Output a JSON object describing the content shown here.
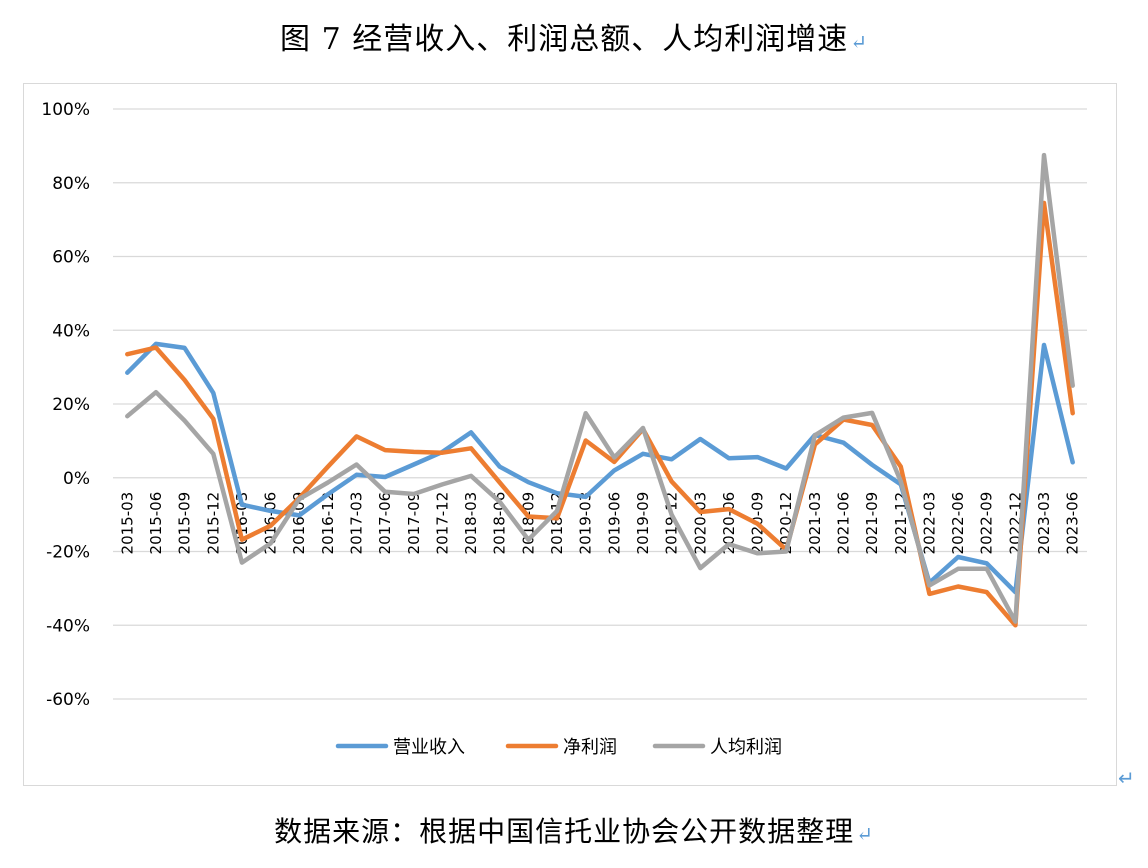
{
  "title": "图 7 经营收入、利润总额、人均利润增速",
  "source_note": "数据来源：根据中国信托业协会公开数据整理",
  "return_mark": "↵",
  "chart_data": {
    "type": "line",
    "title": "",
    "xlabel": "",
    "ylabel": "",
    "ylim": [
      -60,
      100
    ],
    "ystep": 20,
    "yformat": "percent",
    "grid": true,
    "legend_position": "bottom",
    "categories": [
      "2015-03",
      "2015-06",
      "2015-09",
      "2015-12",
      "2016-03",
      "2016-06",
      "2016-09",
      "2016-12",
      "2017-03",
      "2017-06",
      "2017-09",
      "2017-12",
      "2018-03",
      "2018-06",
      "2018-09",
      "2018-12",
      "2019-03",
      "2019-06",
      "2019-09",
      "2019-12",
      "2020-03",
      "2020-06",
      "2020-09",
      "2020-12",
      "2021-03",
      "2021-06",
      "2021-09",
      "2021-12",
      "2022-03",
      "2022-06",
      "2022-09",
      "2022-12",
      "2023-03",
      "2023-06"
    ],
    "series": [
      {
        "name": "营业收入",
        "color": "#5b9bd5",
        "values": [
          28.5,
          36.3,
          35.2,
          23,
          -7.3,
          -9,
          -10.2,
          -4.5,
          0.8,
          0.2,
          3.6,
          7,
          12.3,
          3,
          -1.2,
          -4.2,
          -5.2,
          2,
          6.5,
          5,
          10.5,
          5.3,
          5.6,
          2.5,
          11.6,
          9.5,
          3.5,
          -1.8,
          -28.5,
          -21.5,
          -23.2,
          -31,
          36,
          4.2
        ]
      },
      {
        "name": "净利润",
        "color": "#ed7d31",
        "values": [
          33.5,
          35.3,
          26.5,
          16,
          -16.8,
          -13,
          -5.5,
          3,
          11.2,
          7.5,
          7,
          6.8,
          8,
          -1.3,
          -10.5,
          -11,
          10.1,
          4.3,
          13.2,
          -1,
          -9.3,
          -8.5,
          -12.5,
          -19.5,
          9,
          15.8,
          14.3,
          3,
          -31.5,
          -29.5,
          -31,
          -40,
          74.5,
          17.5
        ]
      },
      {
        "name": "人均利润",
        "color": "#a5a5a5",
        "values": [
          16.7,
          23.2,
          15.5,
          6.5,
          -23,
          -17.8,
          -5.8,
          -1.3,
          3.6,
          -3.8,
          -4.4,
          -1.8,
          0.5,
          -6.5,
          -16.8,
          -9,
          17.5,
          5.5,
          13.5,
          -10,
          -24.5,
          -18,
          -20.5,
          -20,
          11.5,
          16.3,
          17.6,
          -1,
          -29.2,
          -24.7,
          -24.7,
          -39,
          87.5,
          25
        ]
      }
    ]
  }
}
